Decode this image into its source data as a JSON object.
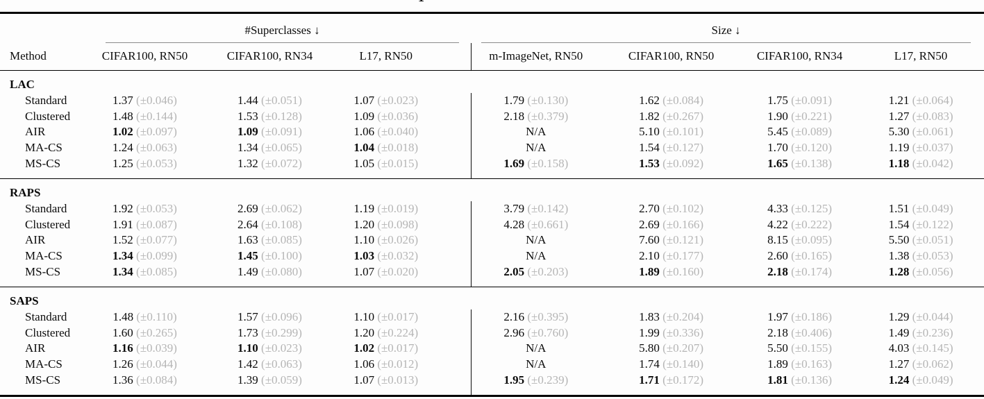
{
  "fragment": {
    "glyph": "1"
  },
  "colors": {
    "text": "#0b0b0b",
    "pm_gray": "#b5b5b5",
    "cmidrule_gray": "#8a8a8a",
    "rule_black": "#000000",
    "background": "#fdfdfd"
  },
  "table": {
    "group_headers": [
      {
        "label": "#Superclasses ↓",
        "span": 3
      },
      {
        "label": "Size ↓",
        "span": 4
      }
    ],
    "columns": [
      "Method",
      "CIFAR100, RN50",
      "CIFAR100, RN34",
      "L17, RN50",
      "m-ImageNet, RN50",
      "CIFAR100, RN50",
      "CIFAR100, RN34",
      "L17, RN50"
    ],
    "sections": [
      {
        "name": "LAC",
        "rows": [
          {
            "method": "Standard",
            "cells": [
              {
                "v": "1.37",
                "pm": "(±0.046)"
              },
              {
                "v": "1.44",
                "pm": "(±0.051)"
              },
              {
                "v": "1.07",
                "pm": "(±0.023)"
              },
              {
                "v": "1.79",
                "pm": "(±0.130)"
              },
              {
                "v": "1.62",
                "pm": "(±0.084)"
              },
              {
                "v": "1.75",
                "pm": "(±0.091)"
              },
              {
                "v": "1.21",
                "pm": "(±0.064)"
              }
            ]
          },
          {
            "method": "Clustered",
            "cells": [
              {
                "v": "1.48",
                "pm": "(±0.144)"
              },
              {
                "v": "1.53",
                "pm": "(±0.128)"
              },
              {
                "v": "1.09",
                "pm": "(±0.036)"
              },
              {
                "v": "2.18",
                "pm": "(±0.379)"
              },
              {
                "v": "1.82",
                "pm": "(±0.267)"
              },
              {
                "v": "1.90",
                "pm": "(±0.221)"
              },
              {
                "v": "1.27",
                "pm": "(±0.083)"
              }
            ]
          },
          {
            "method": "AIR",
            "cells": [
              {
                "v": "1.02",
                "pm": "(±0.097)",
                "bold": true
              },
              {
                "v": "1.09",
                "pm": "(±0.091)",
                "bold": true
              },
              {
                "v": "1.06",
                "pm": "(±0.040)"
              },
              {
                "v": "N/A",
                "na": true
              },
              {
                "v": "5.10",
                "pm": "(±0.101)"
              },
              {
                "v": "5.45",
                "pm": "(±0.089)"
              },
              {
                "v": "5.30",
                "pm": "(±0.061)"
              }
            ]
          },
          {
            "method": "MA-CS",
            "cells": [
              {
                "v": "1.24",
                "pm": "(±0.063)"
              },
              {
                "v": "1.34",
                "pm": "(±0.065)"
              },
              {
                "v": "1.04",
                "pm": "(±0.018)",
                "bold": true
              },
              {
                "v": "N/A",
                "na": true
              },
              {
                "v": "1.54",
                "pm": "(±0.127)"
              },
              {
                "v": "1.70",
                "pm": "(±0.120)"
              },
              {
                "v": "1.19",
                "pm": "(±0.037)"
              }
            ]
          },
          {
            "method": "MS-CS",
            "cells": [
              {
                "v": "1.25",
                "pm": "(±0.053)"
              },
              {
                "v": "1.32",
                "pm": "(±0.072)"
              },
              {
                "v": "1.05",
                "pm": "(±0.015)"
              },
              {
                "v": "1.69",
                "pm": "(±0.158)",
                "bold": true
              },
              {
                "v": "1.53",
                "pm": "(±0.092)",
                "bold": true
              },
              {
                "v": "1.65",
                "pm": "(±0.138)",
                "bold": true
              },
              {
                "v": "1.18",
                "pm": "(±0.042)",
                "bold": true
              }
            ]
          }
        ]
      },
      {
        "name": "RAPS",
        "rows": [
          {
            "method": "Standard",
            "cells": [
              {
                "v": "1.92",
                "pm": "(±0.053)"
              },
              {
                "v": "2.69",
                "pm": "(±0.062)"
              },
              {
                "v": "1.19",
                "pm": "(±0.019)"
              },
              {
                "v": "3.79",
                "pm": "(±0.142)"
              },
              {
                "v": "2.70",
                "pm": "(±0.102)"
              },
              {
                "v": "4.33",
                "pm": "(±0.125)"
              },
              {
                "v": "1.51",
                "pm": "(±0.049)"
              }
            ]
          },
          {
            "method": "Clustered",
            "cells": [
              {
                "v": "1.91",
                "pm": "(±0.087)"
              },
              {
                "v": "2.64",
                "pm": "(±0.108)"
              },
              {
                "v": "1.20",
                "pm": "(±0.098)"
              },
              {
                "v": "4.28",
                "pm": "(±0.661)"
              },
              {
                "v": "2.69",
                "pm": "(±0.166)"
              },
              {
                "v": "4.22",
                "pm": "(±0.222)"
              },
              {
                "v": "1.54",
                "pm": "(±0.122)"
              }
            ]
          },
          {
            "method": "AIR",
            "cells": [
              {
                "v": "1.52",
                "pm": "(±0.077)"
              },
              {
                "v": "1.63",
                "pm": "(±0.085)"
              },
              {
                "v": "1.10",
                "pm": "(±0.026)"
              },
              {
                "v": "N/A",
                "na": true
              },
              {
                "v": "7.60",
                "pm": "(±0.121)"
              },
              {
                "v": "8.15",
                "pm": "(±0.095)"
              },
              {
                "v": "5.50",
                "pm": "(±0.051)"
              }
            ]
          },
          {
            "method": "MA-CS",
            "cells": [
              {
                "v": "1.34",
                "pm": "(±0.099)",
                "bold": true
              },
              {
                "v": "1.45",
                "pm": "(±0.100)",
                "bold": true
              },
              {
                "v": "1.03",
                "pm": "(±0.032)",
                "bold": true
              },
              {
                "v": "N/A",
                "na": true
              },
              {
                "v": "2.10",
                "pm": "(±0.177)"
              },
              {
                "v": "2.60",
                "pm": "(±0.165)"
              },
              {
                "v": "1.38",
                "pm": "(±0.053)"
              }
            ]
          },
          {
            "method": "MS-CS",
            "cells": [
              {
                "v": "1.34",
                "pm": "(±0.085)",
                "bold": true
              },
              {
                "v": "1.49",
                "pm": "(±0.080)"
              },
              {
                "v": "1.07",
                "pm": "(±0.020)"
              },
              {
                "v": "2.05",
                "pm": "(±0.203)",
                "bold": true
              },
              {
                "v": "1.89",
                "pm": "(±0.160)",
                "bold": true
              },
              {
                "v": "2.18",
                "pm": "(±0.174)",
                "bold": true
              },
              {
                "v": "1.28",
                "pm": "(±0.056)",
                "bold": true
              }
            ]
          }
        ]
      },
      {
        "name": "SAPS",
        "rows": [
          {
            "method": "Standard",
            "cells": [
              {
                "v": "1.48",
                "pm": "(±0.110)"
              },
              {
                "v": "1.57",
                "pm": "(±0.096)"
              },
              {
                "v": "1.10",
                "pm": "(±0.017)"
              },
              {
                "v": "2.16",
                "pm": "(±0.395)"
              },
              {
                "v": "1.83",
                "pm": "(±0.204)"
              },
              {
                "v": "1.97",
                "pm": "(±0.186)"
              },
              {
                "v": "1.29",
                "pm": "(±0.044)"
              }
            ]
          },
          {
            "method": "Clustered",
            "cells": [
              {
                "v": "1.60",
                "pm": "(±0.265)"
              },
              {
                "v": "1.73",
                "pm": "(±0.299)"
              },
              {
                "v": "1.20",
                "pm": "(±0.224)"
              },
              {
                "v": "2.96",
                "pm": "(±0.760)"
              },
              {
                "v": "1.99",
                "pm": "(±0.336)"
              },
              {
                "v": "2.18",
                "pm": "(±0.406)"
              },
              {
                "v": "1.49",
                "pm": "(±0.236)"
              }
            ]
          },
          {
            "method": "AIR",
            "cells": [
              {
                "v": "1.16",
                "pm": "(±0.039)",
                "bold": true
              },
              {
                "v": "1.10",
                "pm": "(±0.023)",
                "bold": true
              },
              {
                "v": "1.02",
                "pm": "(±0.017)",
                "bold": true
              },
              {
                "v": "N/A",
                "na": true
              },
              {
                "v": "5.80",
                "pm": "(±0.207)"
              },
              {
                "v": "5.50",
                "pm": "(±0.155)"
              },
              {
                "v": "4.03",
                "pm": "(±0.145)"
              }
            ]
          },
          {
            "method": "MA-CS",
            "cells": [
              {
                "v": "1.26",
                "pm": "(±0.044)"
              },
              {
                "v": "1.42",
                "pm": "(±0.063)"
              },
              {
                "v": "1.06",
                "pm": "(±0.012)"
              },
              {
                "v": "N/A",
                "na": true
              },
              {
                "v": "1.74",
                "pm": "(±0.140)"
              },
              {
                "v": "1.89",
                "pm": "(±0.163)"
              },
              {
                "v": "1.27",
                "pm": "(±0.062)"
              }
            ]
          },
          {
            "method": "MS-CS",
            "cells": [
              {
                "v": "1.36",
                "pm": "(±0.084)"
              },
              {
                "v": "1.39",
                "pm": "(±0.059)"
              },
              {
                "v": "1.07",
                "pm": "(±0.013)"
              },
              {
                "v": "1.95",
                "pm": "(±0.239)",
                "bold": true
              },
              {
                "v": "1.71",
                "pm": "(±0.172)",
                "bold": true
              },
              {
                "v": "1.81",
                "pm": "(±0.136)",
                "bold": true
              },
              {
                "v": "1.24",
                "pm": "(±0.049)",
                "bold": true
              }
            ]
          }
        ]
      }
    ]
  }
}
